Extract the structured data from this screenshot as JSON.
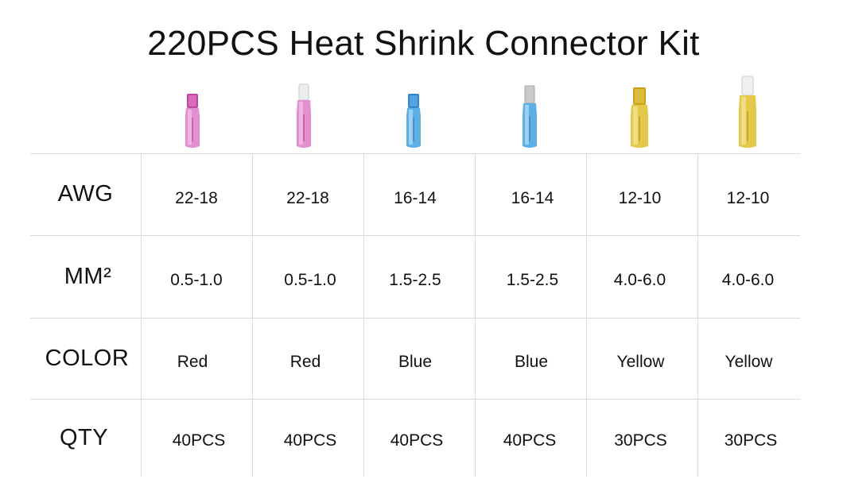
{
  "title": "220PCS Heat Shrink Connector Kit",
  "connector_colors": [
    "#d45fb5",
    "#d45fb5",
    "#4a9fd8",
    "#4a9fd8",
    "#d8b82c",
    "#d8b82c"
  ],
  "connector_icons": [
    "female-spade-connector-icon",
    "male-spade-connector-icon",
    "female-spade-connector-icon",
    "male-spade-connector-icon",
    "female-spade-connector-icon",
    "male-spade-connector-icon"
  ],
  "rows": [
    {
      "label": "AWG",
      "values": [
        "22-18",
        "22-18",
        "16-14",
        "16-14",
        "12-10",
        "12-10"
      ]
    },
    {
      "label": "MM²",
      "values": [
        "0.5-1.0",
        "0.5-1.0",
        "1.5-2.5",
        "1.5-2.5",
        "4.0-6.0",
        "4.0-6.0"
      ]
    },
    {
      "label": "COLOR",
      "values": [
        "Red",
        "Red",
        "Blue",
        "Blue",
        "Yellow",
        "Yellow"
      ]
    },
    {
      "label": "QTY",
      "values": [
        "40PCS",
        "40PCS",
        "40PCS",
        "40PCS",
        "30PCS",
        "30PCS"
      ]
    }
  ]
}
